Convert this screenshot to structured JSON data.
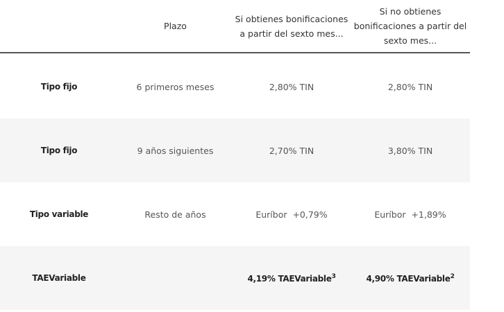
{
  "header": {
    "col1": "",
    "col2": "Plazo",
    "col3": "Si obtienes bonificaciones a partir del sexto mes...",
    "col4": "Si no obtienes bonificaciones a partir del sexto mes..."
  },
  "rows": [
    {
      "tipo": "Tipo fijo",
      "plazo": "6 primeros meses",
      "con": "2,80% TIN",
      "sin": "2,80% TIN"
    },
    {
      "tipo": "Tipo fijo",
      "plazo": "9 años siguientes",
      "con": "2,70% TIN",
      "sin": "3,80% TIN"
    },
    {
      "tipo": "Tipo variable",
      "plazo": "Resto de años",
      "con": "Euríbor  +0,79%",
      "sin": "Euríbor  +1,89%"
    },
    {
      "tipo": "TAEVariable",
      "plazo": "",
      "con": "4,19% TAEVariable",
      "con_sup": "3",
      "sin": "4,90% TAEVariable",
      "sin_sup": "2"
    }
  ],
  "colors": {
    "row_alt": "#f5f5f5",
    "header_rule": "#555555"
  }
}
